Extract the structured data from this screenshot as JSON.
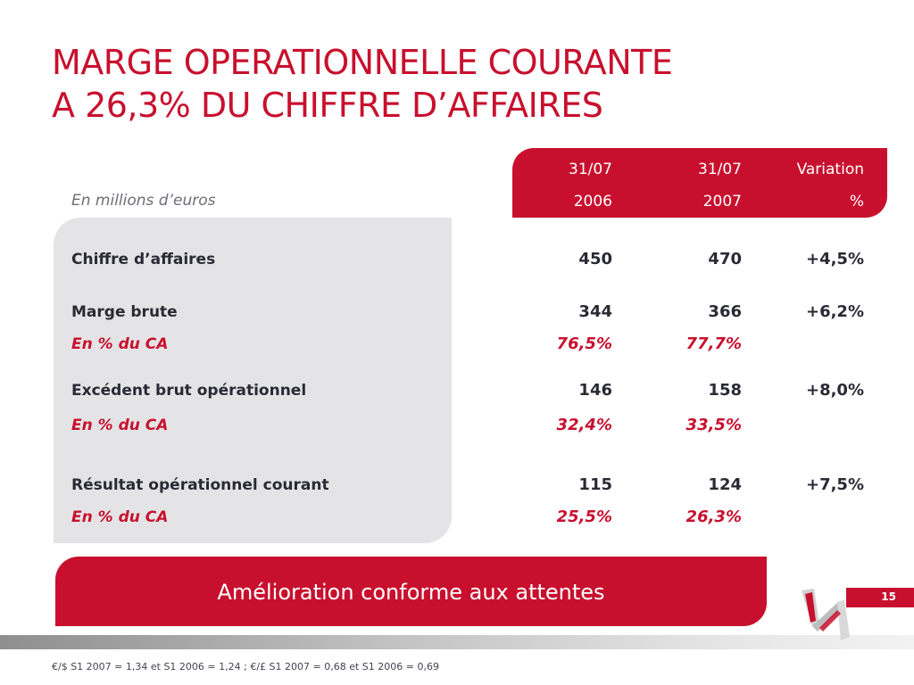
{
  "title": {
    "line1": "MARGE OPERATIONNELLE COURANTE",
    "line2": "A 26,3% DU CHIFFRE D’AFFAIRES"
  },
  "table": {
    "unit_label": "En millions d’euros",
    "headers": [
      {
        "line1": "31/07",
        "line2": "2006"
      },
      {
        "line1": "31/07",
        "line2": "2007"
      },
      {
        "line1": "Variation",
        "line2": "%"
      }
    ],
    "rows": [
      {
        "label": "Chiffre d’affaires",
        "v2006": "450",
        "v2007": "470",
        "variation": "+4,5%"
      },
      {
        "label": "Marge brute",
        "v2006": "344",
        "v2007": "366",
        "variation": "+6,2%"
      },
      {
        "label": "En % du CA",
        "v2006": "76,5%",
        "v2007": "77,7%"
      },
      {
        "label": "Excédent brut opérationnel",
        "v2006": "146",
        "v2007": "158",
        "variation": "+8,0%"
      },
      {
        "label": "En % du CA",
        "v2006": "32,4%",
        "v2007": "33,5%"
      },
      {
        "label": "Résultat opérationnel courant",
        "v2006": "115",
        "v2007": "124",
        "variation": "+7,5%"
      },
      {
        "label": "En % du CA",
        "v2006": "25,5%",
        "v2007": "26,3%"
      }
    ]
  },
  "banner": {
    "text": "Amélioration conforme aux attentes"
  },
  "page_number": "15",
  "footnote": "€/$ S1 2007 = 1,34 et S1 2006 = 1,24 ; €/£ S1 2007 = 0,68 et S1 2006 = 0,69",
  "colors": {
    "accent": "#c8102e",
    "panel": "#e4e4e6",
    "text": "#2a2a35"
  },
  "icons": [
    "brand-logo-icon"
  ]
}
